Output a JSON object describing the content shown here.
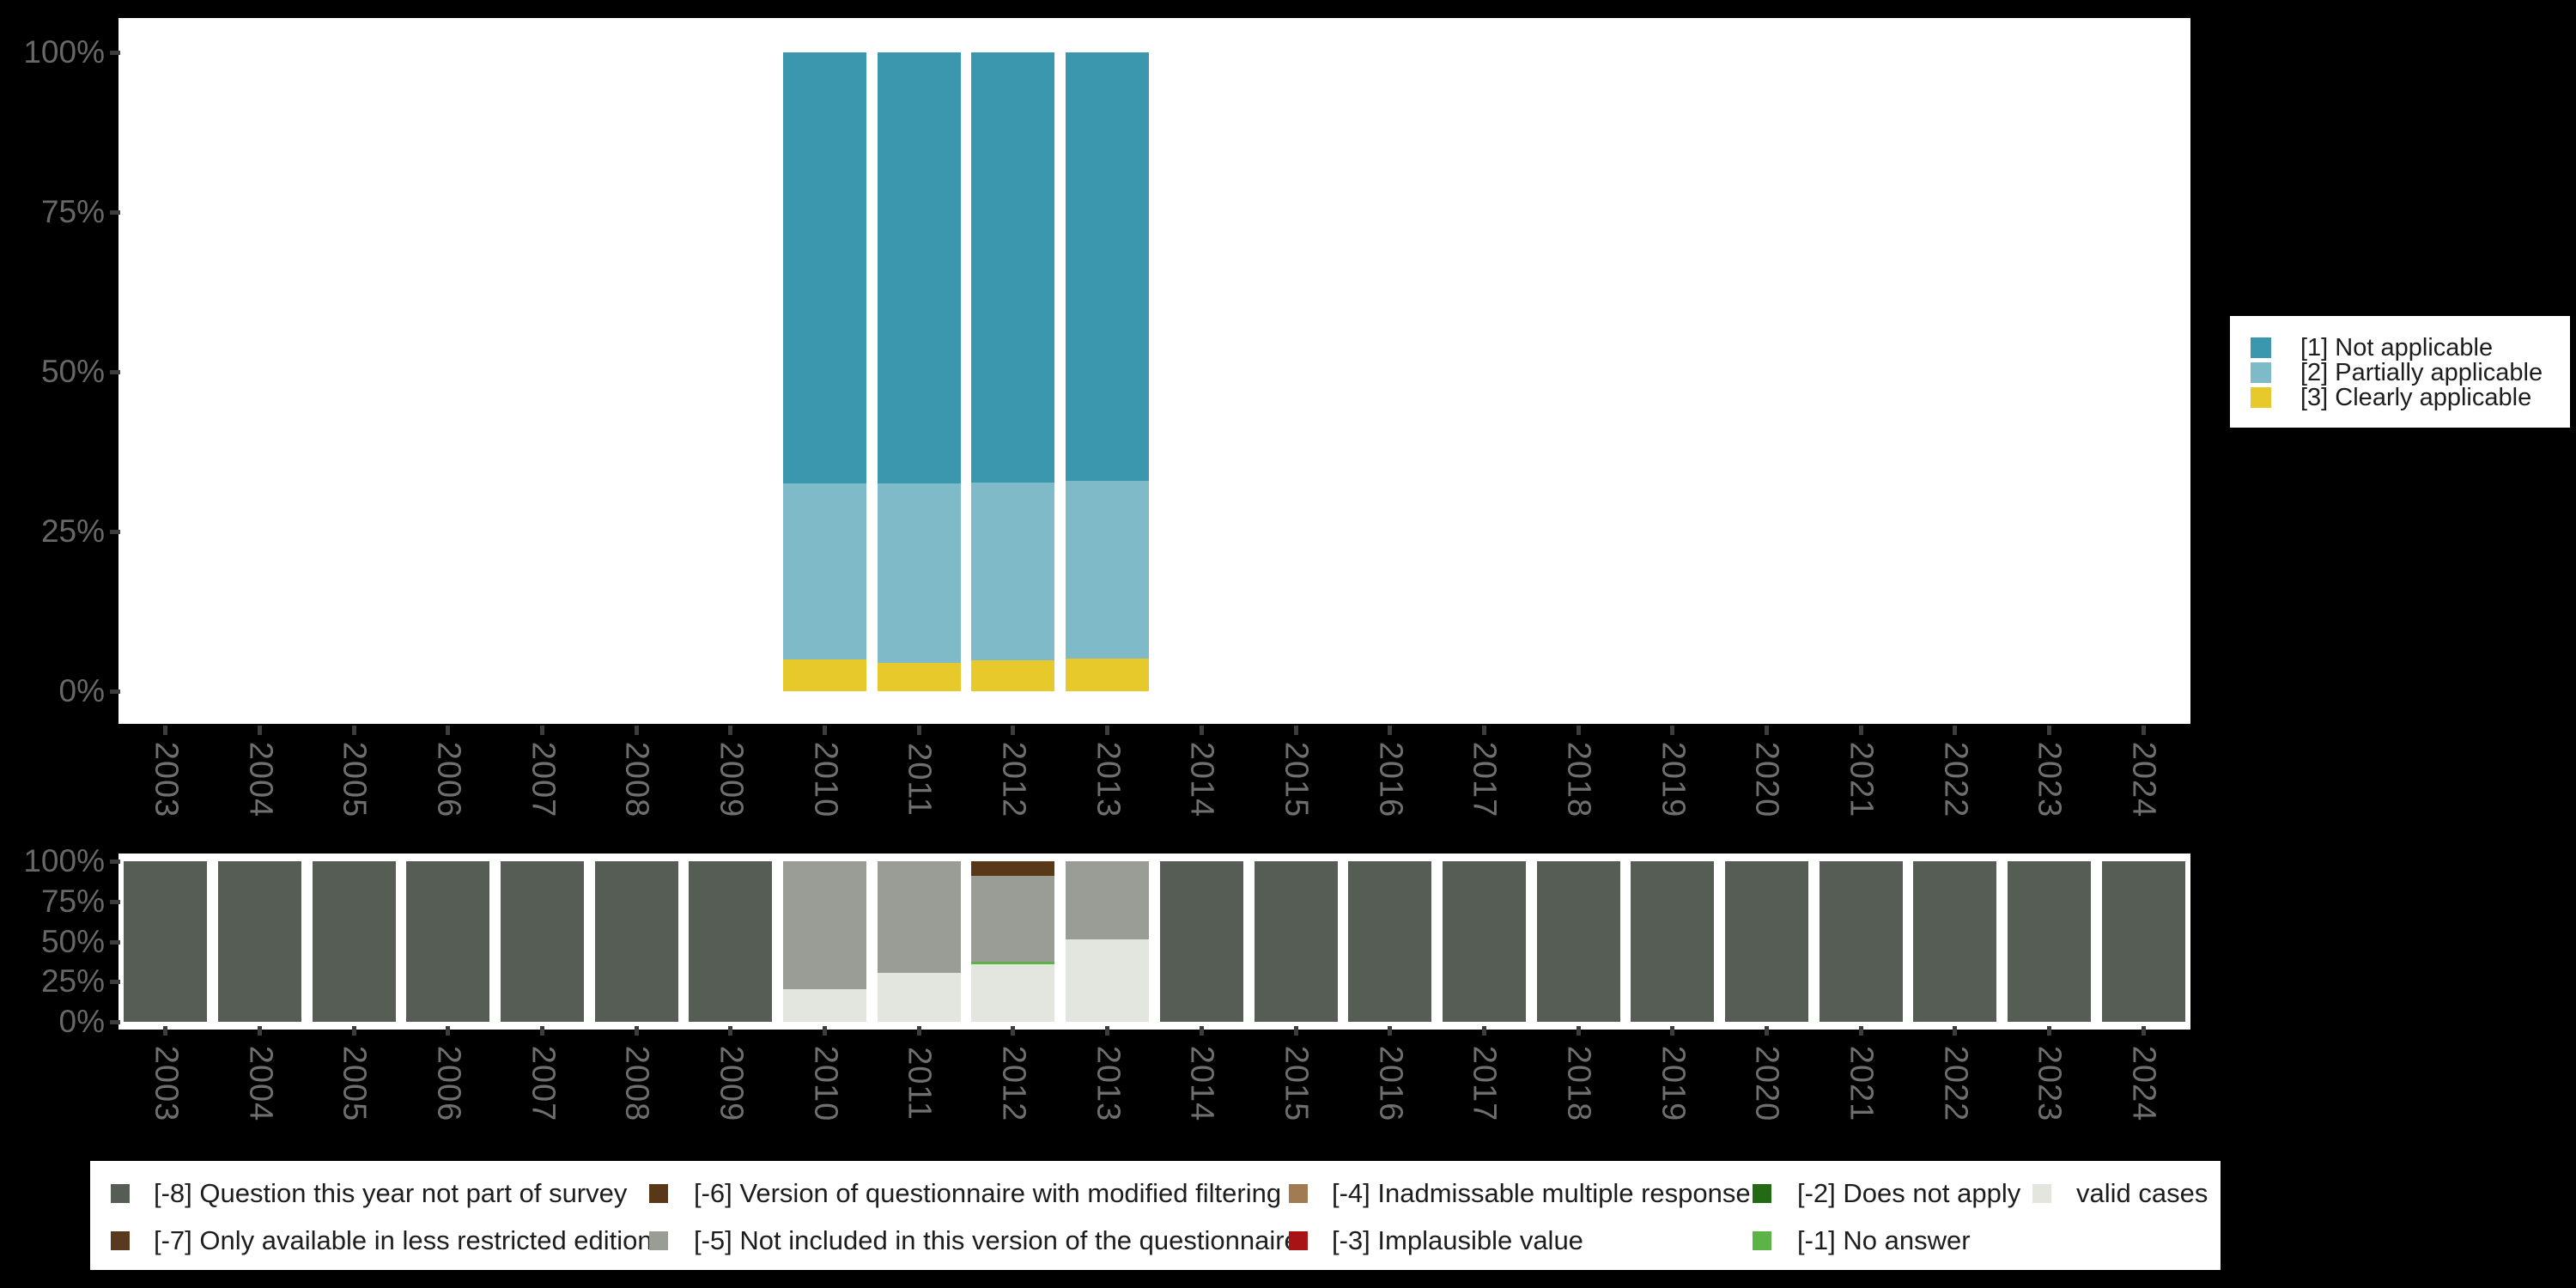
{
  "figure": {
    "background": "#000000",
    "plot_background": "#ffffff",
    "axis_tick_color": "#3d3d3d",
    "axis_label_color": "#6f6f6f"
  },
  "x_years": [
    "2003",
    "2004",
    "2005",
    "2006",
    "2007",
    "2008",
    "2009",
    "2010",
    "2011",
    "2012",
    "2013",
    "2014",
    "2015",
    "2016",
    "2017",
    "2018",
    "2019",
    "2020",
    "2021",
    "2022",
    "2023",
    "2024"
  ],
  "chart_data": [
    {
      "id": "applicability-by-year",
      "type": "bar",
      "stacked": true,
      "unit": "percent",
      "categories": [
        "2003",
        "2004",
        "2005",
        "2006",
        "2007",
        "2008",
        "2009",
        "2010",
        "2011",
        "2012",
        "2013",
        "2014",
        "2015",
        "2016",
        "2017",
        "2018",
        "2019",
        "2020",
        "2021",
        "2022",
        "2023",
        "2024"
      ],
      "ylim": [
        0,
        100
      ],
      "ytick_values": [
        100,
        75,
        50,
        25,
        0
      ],
      "ytick_labels": [
        "100%",
        "75%",
        "50%",
        "25%",
        "0%"
      ],
      "grid": false,
      "legend_position": "right",
      "series": [
        {
          "name": "[1] Not applicable",
          "color": "#3A97AE",
          "values": [
            0,
            0,
            0,
            0,
            0,
            0,
            0,
            67.5,
            67.5,
            67.4,
            67.1,
            0,
            0,
            0,
            0,
            0,
            0,
            0,
            0,
            0,
            0,
            0
          ]
        },
        {
          "name": "[2] Partially applicable",
          "color": "#7FBAC8",
          "values": [
            0,
            0,
            0,
            0,
            0,
            0,
            0,
            27.5,
            28.1,
            27.8,
            27.8,
            0,
            0,
            0,
            0,
            0,
            0,
            0,
            0,
            0,
            0,
            0
          ]
        },
        {
          "name": "[3] Clearly applicable",
          "color": "#E7C92C",
          "values": [
            0,
            0,
            0,
            0,
            0,
            0,
            0,
            5.0,
            4.4,
            4.8,
            5.1,
            0,
            0,
            0,
            0,
            0,
            0,
            0,
            0,
            0,
            0,
            0
          ]
        }
      ]
    },
    {
      "id": "missing-values-by-year",
      "type": "bar",
      "stacked": true,
      "unit": "percent",
      "categories": [
        "2003",
        "2004",
        "2005",
        "2006",
        "2007",
        "2008",
        "2009",
        "2010",
        "2011",
        "2012",
        "2013",
        "2014",
        "2015",
        "2016",
        "2017",
        "2018",
        "2019",
        "2020",
        "2021",
        "2022",
        "2023",
        "2024"
      ],
      "ylim": [
        0,
        100
      ],
      "ytick_values": [
        100,
        75,
        50,
        25,
        0
      ],
      "ytick_labels": [
        "100%",
        "75%",
        "50%",
        "25%",
        "0%"
      ],
      "grid": false,
      "legend_position": "bottom",
      "series": [
        {
          "name": "[-8] Question this year not part of survey",
          "color": "#565D54",
          "values": [
            100,
            100,
            100,
            100,
            100,
            100,
            100,
            0,
            0,
            0,
            0,
            100,
            100,
            100,
            100,
            100,
            100,
            100,
            100,
            100,
            100,
            100
          ]
        },
        {
          "name": "[-7] Only available in less restricted edition",
          "color": "#5A3A1E",
          "values": [
            0,
            0,
            0,
            0,
            0,
            0,
            0,
            0,
            0,
            0,
            0,
            0,
            0,
            0,
            0,
            0,
            0,
            0,
            0,
            0,
            0,
            0
          ]
        },
        {
          "name": "[-6] Version of questionnaire with modified filtering",
          "color": "#583817",
          "values": [
            0,
            0,
            0,
            0,
            0,
            0,
            0,
            0,
            0,
            9.0,
            0,
            0,
            0,
            0,
            0,
            0,
            0,
            0,
            0,
            0,
            0,
            0
          ]
        },
        {
          "name": "[-5] Not included in this version of the questionnaire",
          "color": "#999D95",
          "values": [
            0,
            0,
            0,
            0,
            0,
            0,
            0,
            79.7,
            69.5,
            53.5,
            48.5,
            0,
            0,
            0,
            0,
            0,
            0,
            0,
            0,
            0,
            0,
            0
          ]
        },
        {
          "name": "[-4] Inadmissable multiple response",
          "color": "#A17C52",
          "values": [
            0,
            0,
            0,
            0,
            0,
            0,
            0,
            0,
            0,
            0,
            0,
            0,
            0,
            0,
            0,
            0,
            0,
            0,
            0,
            0,
            0,
            0
          ]
        },
        {
          "name": "[-3] Implausible value",
          "color": "#A81415",
          "values": [
            0,
            0,
            0,
            0,
            0,
            0,
            0,
            0,
            0,
            0,
            0,
            0,
            0,
            0,
            0,
            0,
            0,
            0,
            0,
            0,
            0,
            0
          ]
        },
        {
          "name": "[-2] Does not apply",
          "color": "#226B14",
          "values": [
            0,
            0,
            0,
            0,
            0,
            0,
            0,
            0,
            0,
            0,
            0,
            0,
            0,
            0,
            0,
            0,
            0,
            0,
            0,
            0,
            0,
            0
          ]
        },
        {
          "name": "[-1] No answer",
          "color": "#5CB347",
          "values": [
            0,
            0,
            0,
            0,
            0,
            0,
            0,
            0,
            0,
            1.5,
            0,
            0,
            0,
            0,
            0,
            0,
            0,
            0,
            0,
            0,
            0,
            0
          ]
        },
        {
          "name": "valid cases",
          "color": "#E2E6DF",
          "values": [
            0,
            0,
            0,
            0,
            0,
            0,
            0,
            20.3,
            30.5,
            36.0,
            51.5,
            0,
            0,
            0,
            0,
            0,
            0,
            0,
            0,
            0,
            0,
            0
          ]
        }
      ]
    }
  ],
  "legend_right": {
    "items": [
      {
        "label": "[1] Not applicable",
        "color": "#3A97AE"
      },
      {
        "label": "[2] Partially applicable",
        "color": "#7FBAC8"
      },
      {
        "label": "[3] Clearly applicable",
        "color": "#E7C92C"
      }
    ]
  },
  "legend_bottom": {
    "items": [
      {
        "label": "[-8] Question this year not part of survey",
        "color": "#565D54"
      },
      {
        "label": "[-7] Only available in less restricted edition",
        "color": "#5A3A1E"
      },
      {
        "label": "[-6] Version of questionnaire with modified filtering",
        "color": "#583817"
      },
      {
        "label": "[-5] Not included in this version of the questionnaire",
        "color": "#999D95"
      },
      {
        "label": "[-4] Inadmissable multiple response",
        "color": "#A17C52"
      },
      {
        "label": "[-3] Implausible value",
        "color": "#A81415"
      },
      {
        "label": "[-2] Does not apply",
        "color": "#226B14"
      },
      {
        "label": "[-1] No answer",
        "color": "#5CB347"
      },
      {
        "label": "valid cases",
        "color": "#E2E6DF"
      }
    ]
  }
}
